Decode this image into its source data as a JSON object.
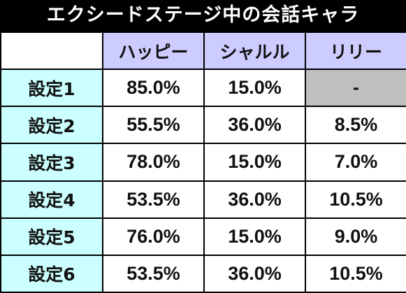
{
  "title": "エクシードステージ中の会話キャラ",
  "columns": [
    "ハッピー",
    "シャルル",
    "リリー"
  ],
  "rows": [
    {
      "label": "設定1",
      "values": [
        "85.0%",
        "15.0%",
        "-"
      ]
    },
    {
      "label": "設定2",
      "values": [
        "55.5%",
        "36.0%",
        "8.5%"
      ]
    },
    {
      "label": "設定3",
      "values": [
        "78.0%",
        "15.0%",
        "7.0%"
      ]
    },
    {
      "label": "設定4",
      "values": [
        "53.5%",
        "36.0%",
        "10.5%"
      ]
    },
    {
      "label": "設定5",
      "values": [
        "76.0%",
        "15.0%",
        "9.0%"
      ]
    },
    {
      "label": "設定6",
      "values": [
        "53.5%",
        "36.0%",
        "10.5%"
      ]
    }
  ],
  "colors": {
    "title_bg": "#000000",
    "header_bg": "#ccccff",
    "rowhead_bg": "#ccffff",
    "empty_cell_bg": "#bfbfbf"
  }
}
